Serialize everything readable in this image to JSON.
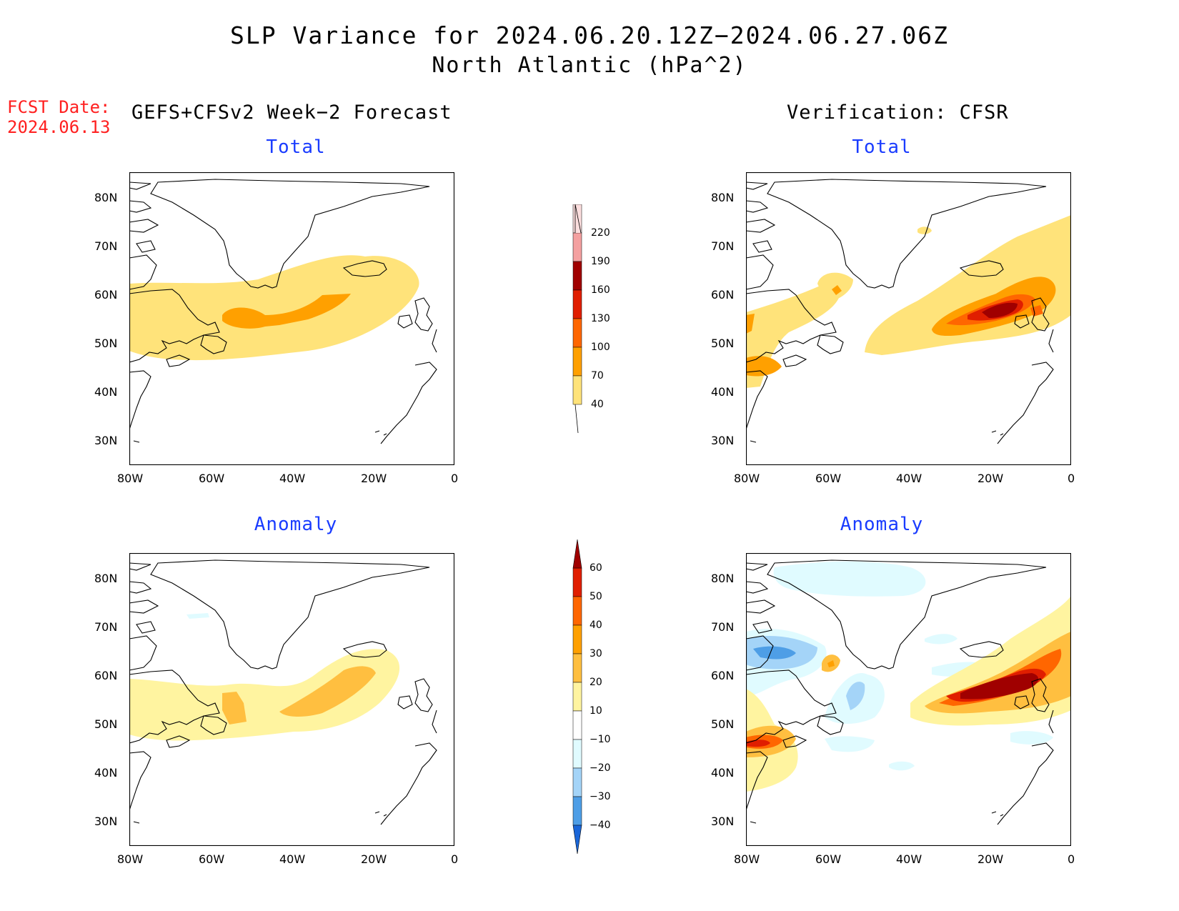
{
  "title": {
    "line1": "SLP Variance for 2024.06.20.12Z−2024.06.27.06Z",
    "line2": "North Atlantic (hPa^2)"
  },
  "fcst_date": {
    "label": "FCST Date:",
    "value": "2024.06.13"
  },
  "columns": {
    "left_title": "GEFS+CFSv2 Week−2 Forecast",
    "right_title": "Verification: CFSR"
  },
  "panels": {
    "forecast_total": {
      "subtitle": "Total"
    },
    "verification_total": {
      "subtitle": "Total"
    },
    "forecast_anomaly": {
      "subtitle": "Anomaly"
    },
    "verification_anomaly": {
      "subtitle": "Anomaly"
    }
  },
  "axes": {
    "lat_labels": [
      "80N",
      "70N",
      "60N",
      "50N",
      "40N",
      "30N"
    ],
    "lon_labels": [
      "80W",
      "60W",
      "40W",
      "20W",
      "0"
    ]
  },
  "colorbars": {
    "total": {
      "labels": [
        "220",
        "190",
        "160",
        "130",
        "100",
        "70",
        "40"
      ],
      "colors": [
        "#fcdede",
        "#f4a0a0",
        "#a00000",
        "#e01e00",
        "#ff6600",
        "#ffa000",
        "#ffe37a"
      ]
    },
    "anomaly": {
      "labels": [
        "60",
        "50",
        "40",
        "30",
        "20",
        "10",
        "−10",
        "−20",
        "−30",
        "−40"
      ],
      "colors": [
        "#a00000",
        "#e01e00",
        "#ff6600",
        "#ffa000",
        "#ffbf40",
        "#fff4a0",
        "#ffffff",
        "#e0fbff",
        "#a4d4f8",
        "#4e9ee6",
        "#1a66d8"
      ]
    }
  },
  "colors": {
    "yellow_light": "#fff4a0",
    "yellow": "#ffe37a",
    "gold": "#ffbf40",
    "orange": "#ffa000",
    "orange_red": "#ff6600",
    "red": "#e01e00",
    "dark_red": "#a00000",
    "light_blue": "#e0fbff",
    "blue": "#a4d4f8",
    "mid_blue": "#4e9ee6",
    "title_blue": "#1a3cff",
    "fcst_red": "#ff2020"
  }
}
